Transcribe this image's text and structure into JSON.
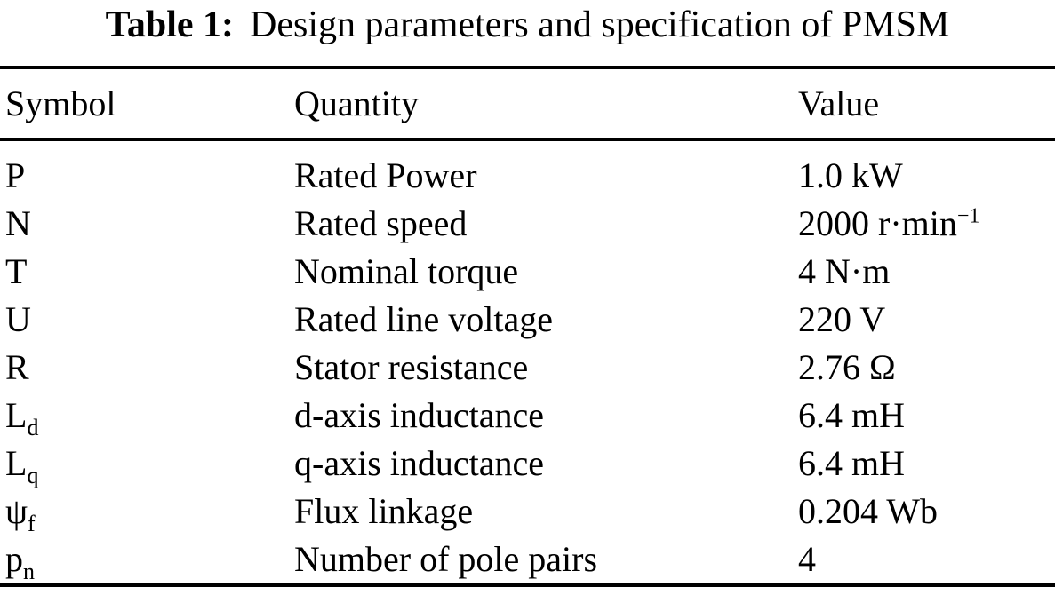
{
  "title": {
    "label": "Table 1:",
    "text": "Design parameters and specification of PMSM"
  },
  "table": {
    "headers": {
      "symbol": "Symbol",
      "quantity": "Quantity",
      "value": "Value"
    },
    "rows": [
      {
        "symbol": "P",
        "symbol_sub": "",
        "quantity": "Rated Power",
        "value": "1.0 kW",
        "value_sup": ""
      },
      {
        "symbol": "N",
        "symbol_sub": "",
        "quantity": "Rated speed",
        "value": "2000 r·min",
        "value_sup": "−1"
      },
      {
        "symbol": "T",
        "symbol_sub": "",
        "quantity": "Nominal torque",
        "value": "4 N·m",
        "value_sup": ""
      },
      {
        "symbol": "U",
        "symbol_sub": "",
        "quantity": "Rated line voltage",
        "value": "220 V",
        "value_sup": ""
      },
      {
        "symbol": "R",
        "symbol_sub": "",
        "quantity": "Stator resistance",
        "value": "2.76 Ω",
        "value_sup": ""
      },
      {
        "symbol": "L",
        "symbol_sub": "d",
        "quantity": "d-axis inductance",
        "value": "6.4 mH",
        "value_sup": ""
      },
      {
        "symbol": "L",
        "symbol_sub": "q",
        "quantity": "q-axis inductance",
        "value": "6.4 mH",
        "value_sup": ""
      },
      {
        "symbol": "ψ",
        "symbol_sub": "f",
        "quantity": "Flux linkage",
        "value": "0.204 Wb",
        "value_sup": ""
      },
      {
        "symbol": "p",
        "symbol_sub": "n",
        "quantity": "Number of pole pairs",
        "value": "4",
        "value_sup": ""
      }
    ]
  },
  "colors": {
    "background": "#ffffff",
    "text": "#000000",
    "rule": "#000000"
  }
}
